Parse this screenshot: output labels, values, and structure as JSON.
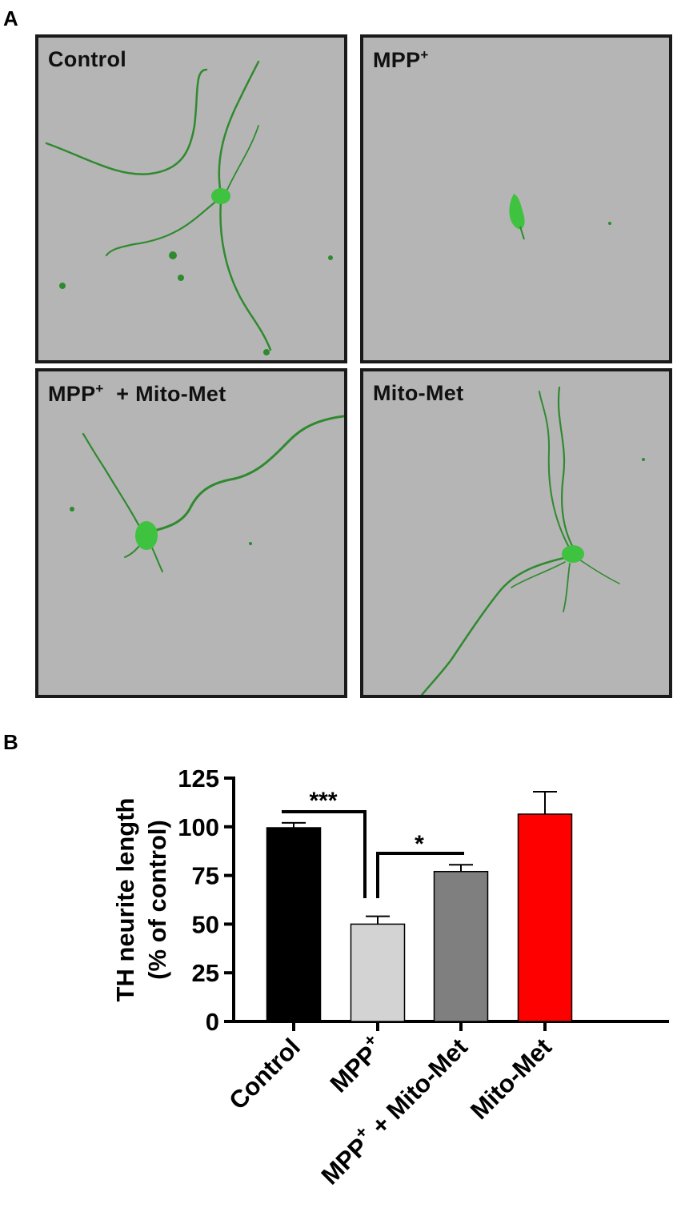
{
  "panels": {
    "a_letter": "A",
    "b_letter": "B"
  },
  "micrographs": [
    {
      "label": "Control",
      "label_html": "Control"
    },
    {
      "label": "MPP+",
      "label_html": "MPP<sup>+</sup>"
    },
    {
      "label": "MPP+ + Mito-Met",
      "label_html": "MPP<sup>+</sup>&nbsp; + Mito-Met"
    },
    {
      "label": "Mito-Met",
      "label_html": "Mito-Met"
    }
  ],
  "colors": {
    "micrograph_bg": "#b5b5b5",
    "neurite_green": "#2f8a2f",
    "soma_green": "#3fc23f"
  },
  "chart_data": {
    "type": "bar",
    "ylabel_line1": "TH neurite length",
    "ylabel_line2": "(% of control)",
    "ylim": [
      0,
      125
    ],
    "yticks": [
      0,
      25,
      50,
      75,
      100,
      125
    ],
    "categories": [
      "Control",
      "MPP+",
      "MPP+ + Mito-Met",
      "Mito-Met"
    ],
    "values": [
      99.5,
      50,
      77,
      106.5
    ],
    "errors": [
      2.5,
      4,
      3.5,
      11.5
    ],
    "colors": [
      "#000000",
      "#d3d3d3",
      "#7f7f7f",
      "#ff0000"
    ],
    "significance": [
      {
        "from": "Control",
        "to": "MPP+",
        "label": "***"
      },
      {
        "from": "MPP+",
        "to": "MPP+ + Mito-Met",
        "label": "*"
      }
    ]
  }
}
